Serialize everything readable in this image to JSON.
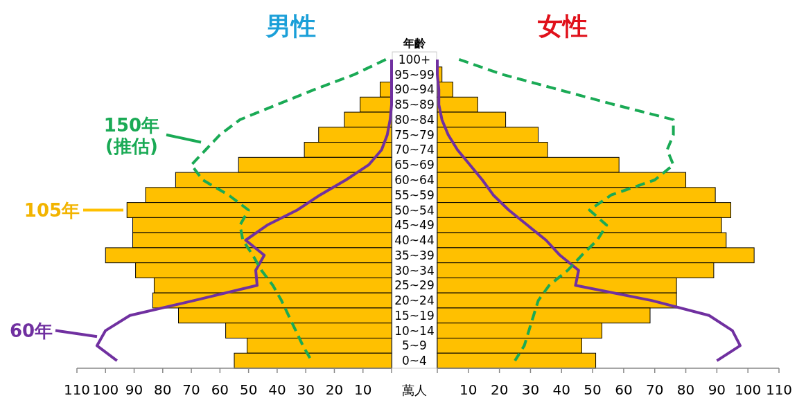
{
  "chart_data": [
    {
      "type": "bar",
      "orientation": "horizontal",
      "title": "男性",
      "ylabel": "年齡",
      "xlabel": "萬人",
      "categories": [
        "100+",
        "95~99",
        "90~94",
        "85~89",
        "80~84",
        "75~79",
        "70~74",
        "65~69",
        "60~64",
        "55~59",
        "50~54",
        "45~49",
        "40~44",
        "35~39",
        "30~34",
        "25~29",
        "20~24",
        "15~19",
        "10~14",
        "5~9",
        "0~4"
      ],
      "xlim": [
        110,
        0
      ],
      "xticks": [
        110,
        100,
        90,
        80,
        70,
        60,
        50,
        40,
        30,
        20,
        10,
        {
          "value": 0,
          "label": null
        }
      ],
      "grid": false,
      "legend": "left",
      "series": [
        {
          "name": "105年",
          "color": "#ffc000",
          "values": [
            0,
            null,
            4,
            11,
            16.5,
            25.5,
            30.5,
            53.5,
            75.5,
            86,
            92.5,
            90.5,
            90.5,
            100,
            89.5,
            83,
            83.5,
            74.5,
            58,
            50.5,
            55
          ]
        },
        {
          "name": "60年",
          "type": "line",
          "color": "#7030a0",
          "line_style": "solid",
          "values": [
            0,
            0,
            0,
            0,
            0.5,
            1.5,
            3.5,
            8,
            16,
            25,
            33,
            43.5,
            51,
            44.5,
            47.5,
            47,
            69,
            91.5,
            100,
            103,
            96
          ]
        },
        {
          "name": "150年\n(推估)",
          "type": "line",
          "color": "#1aaa55",
          "line_style": "dashed",
          "values": [
            2,
            13,
            27,
            40,
            53,
            60,
            65,
            70,
            66,
            57,
            50,
            53,
            52,
            48.5,
            45.5,
            41.5,
            38.5,
            36,
            33.5,
            31,
            28
          ]
        }
      ]
    },
    {
      "type": "bar",
      "orientation": "horizontal",
      "title": "女性",
      "categories": [
        null,
        null,
        null,
        null,
        null,
        null,
        null,
        null,
        null,
        null,
        null,
        null,
        null,
        null,
        null,
        null,
        null,
        null,
        null,
        null,
        null
      ],
      "xlim": [
        0,
        110
      ],
      "xticks": [
        {
          "value": 0,
          "label": null
        },
        10,
        20,
        30,
        40,
        50,
        60,
        70,
        80,
        90,
        100,
        110
      ],
      "tick_labels": "x",
      "grid": false,
      "series": [
        {
          "color": "#ffc000",
          "values": [
            0,
            1.5,
            5,
            13,
            22,
            32.5,
            35.5,
            58.5,
            80,
            89.5,
            94.5,
            91.5,
            93,
            102,
            89,
            77,
            77,
            68.5,
            53,
            46.5,
            51
          ]
        },
        {
          "type": "line",
          "color": "#7030a0",
          "line_style": "solid",
          "values": [
            0,
            0,
            0.5,
            0.5,
            1.5,
            3.5,
            6.5,
            10.5,
            14.5,
            18,
            23,
            29,
            35,
            39.5,
            45.5,
            44.5,
            69,
            87.5,
            95,
            97.5,
            90
          ]
        },
        {
          "type": "line",
          "color": "#1aaa55",
          "line_style": "dashed",
          "values": [
            7,
            21,
            39,
            57,
            76,
            76,
            74,
            76,
            70,
            56,
            49,
            54.5,
            51.5,
            46.5,
            42,
            36,
            32.5,
            31,
            29.5,
            28,
            25
          ]
        }
      ]
    }
  ]
}
